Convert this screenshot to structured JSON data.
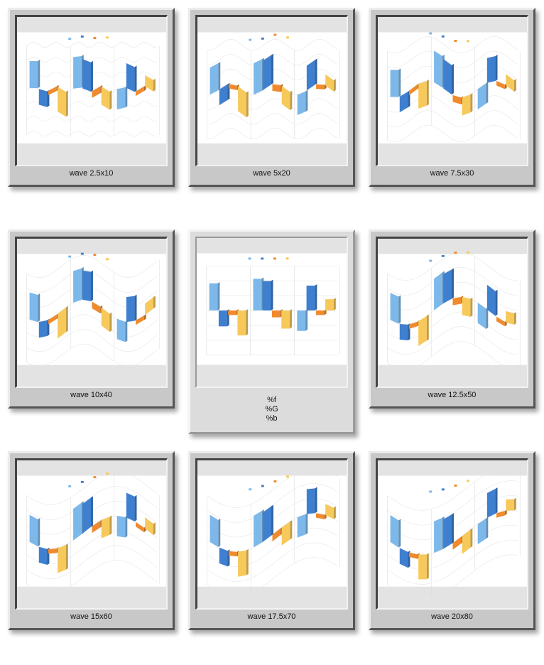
{
  "thumbnails": [
    {
      "caption": "wave 2.5x10",
      "amp": 2.5,
      "period": 10
    },
    {
      "caption": "wave 5x20",
      "amp": 5,
      "period": 20
    },
    {
      "caption": "wave 7.5x30",
      "amp": 7.5,
      "period": 30
    },
    {
      "caption": "wave 10x40",
      "amp": 10,
      "period": 40
    },
    {
      "caption_lines": [
        "%f",
        "%G",
        "%b"
      ],
      "amp": 0,
      "period": 0
    },
    {
      "caption": "wave 12.5x50",
      "amp": 12.5,
      "period": 50
    },
    {
      "caption": "wave 15x60",
      "amp": 15,
      "period": 60
    },
    {
      "caption": "wave 17.5x70",
      "amp": 17.5,
      "period": 70
    },
    {
      "caption": "wave 20x80",
      "amp": 20,
      "period": 80
    }
  ],
  "colors": {
    "frame": "#c8c8c8",
    "frame_center": "#dcdcdc",
    "photo_bg": "#e3e3e3",
    "series": [
      "#7db8ea",
      "#3f7fcf",
      "#f08a2c",
      "#f7c95b"
    ]
  },
  "chart_data": {
    "type": "bar",
    "categories": [
      "",
      "",
      ""
    ],
    "series": [
      {
        "values": [
          60,
          70,
          -45
        ]
      },
      {
        "values": [
          -35,
          65,
          55
        ]
      },
      {
        "values": [
          -10,
          -15,
          -10
        ]
      },
      {
        "values": [
          -55,
          -40,
          25
        ]
      }
    ]
  }
}
